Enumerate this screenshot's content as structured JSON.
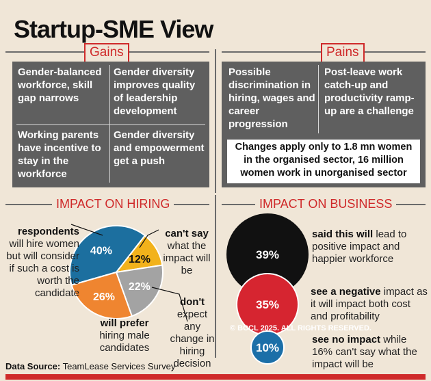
{
  "title": "Startup-SME View",
  "gains": {
    "label": "Gains",
    "items": [
      "Gender-balanced workforce, skill gap narrows",
      "Gender diversity improves quality of leadership development",
      "Working parents have incentive to stay in the workforce",
      "Gender diversity and empowerment get a push"
    ]
  },
  "pains": {
    "label": "Pains",
    "items": [
      "Possible discrimination in hiring, wages and career progression",
      "Post-leave work catch-up and productivity ramp-up are a challenge"
    ],
    "note": "Changes apply only to 1.8 mn women in the organised sector, 16 million women work in unorganised sector"
  },
  "hiring": {
    "heading": "IMPACT ON HIRING",
    "respondents_bold": "respondents",
    "respondents_rest": "will hire women but will consider if such a cost is worth the candidate",
    "cantsay_bold": "can't say",
    "cantsay_rest": "what the impact will be",
    "prefer_bold": "will prefer",
    "prefer_rest": "hiring male candidates",
    "dont_bold": "don't",
    "dont_rest": "expect any change in hiring decision"
  },
  "business": {
    "heading": "IMPACT ON BUSINESS",
    "b1_bold": "said this will",
    "b1_rest": "lead to positive impact and happier workforce",
    "b2_bold": "see a negative",
    "b2_rest": "impact as it will impact both cost and profitability",
    "b3_bold": "see no impact",
    "b3_rest": "while 16% can't say what the impact will be"
  },
  "copyright": "© BCCL 2025. ALL RIGHTS RESERVED.",
  "source_label": "Data Source:",
  "source_value": "TeamLease Services Survey",
  "colors": {
    "accent_red": "#cf2a2a",
    "panel_grey": "#5f5f5f",
    "background": "#f0e6d7"
  },
  "chart_data": [
    {
      "type": "pie",
      "title": "IMPACT ON HIRING",
      "unit": "%",
      "slices": [
        {
          "label": "respondents will hire women but will consider if such a cost is worth the candidate",
          "value": 40,
          "display": "40%",
          "color": "#1c6f9f"
        },
        {
          "label": "can't say what the impact will be",
          "value": 12,
          "display": "12%",
          "color": "#f2b21b"
        },
        {
          "label": "don't expect any change in hiring decision",
          "value": 22,
          "display": "22%",
          "color": "#a3a3a3"
        },
        {
          "label": "will prefer hiring male candidates",
          "value": 26,
          "display": "26%",
          "color": "#ef8530"
        }
      ]
    },
    {
      "type": "bubble",
      "title": "IMPACT ON BUSINESS",
      "unit": "%",
      "items": [
        {
          "label": "said this will lead to positive impact and happier workforce",
          "value": 39,
          "display": "39%",
          "color": "#111111"
        },
        {
          "label": "see a negative impact as it will impact both cost and profitability",
          "value": 35,
          "display": "35%",
          "color": "#d62530"
        },
        {
          "label": "see no impact while 16% can't say what the impact will be",
          "value": 10,
          "display": "10%",
          "color": "#1b6fa8"
        }
      ]
    }
  ]
}
